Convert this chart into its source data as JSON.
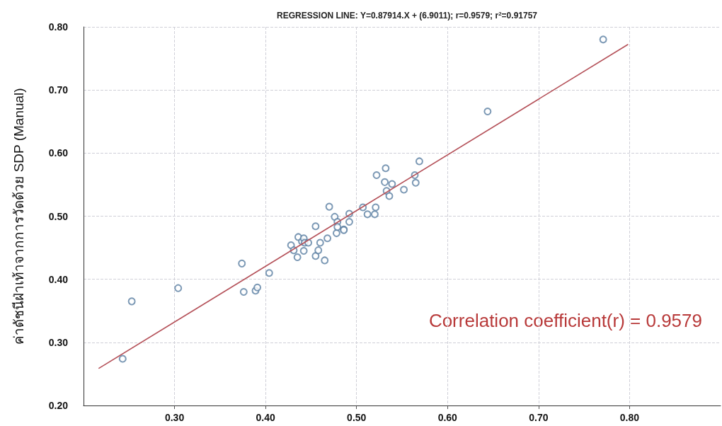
{
  "chart_data": {
    "type": "scatter",
    "title": "REGRESSION LINE: Y=0.87914.X + (6.9011); r=0.9579; r$^{2}$=0.91757",
    "ylabel": "ค่าดัชนีฝ่าเท้าจากการวัดด้วย SDP (Manual)",
    "annotations": [
      "Correlation coefficient(r) = 0.9579"
    ],
    "xlim": [
      0.2,
      0.9
    ],
    "xticks": [
      {
        "value": 0.3,
        "label": "0.30"
      },
      {
        "value": 0.4,
        "label": "0.40"
      },
      {
        "value": 0.5,
        "label": "0.50"
      },
      {
        "value": 0.6,
        "label": "0.60"
      },
      {
        "value": 0.7,
        "label": "0.70"
      },
      {
        "value": 0.8,
        "label": "0.80"
      }
    ],
    "ylim": [
      0.2,
      0.8
    ],
    "yticks": [
      {
        "value": 0.2,
        "label": "0.20"
      },
      {
        "value": 0.3,
        "label": "0.30"
      },
      {
        "value": 0.4,
        "label": "0.40"
      },
      {
        "value": 0.5,
        "label": "0.50"
      },
      {
        "value": 0.6,
        "label": "0.60"
      },
      {
        "value": 0.7,
        "label": "0.70"
      },
      {
        "value": 0.8,
        "label": "0.80"
      }
    ],
    "grid": true,
    "marker": "circle",
    "series": [
      {
        "color": "#5b7fa3",
        "x": [
          0.243,
          0.253,
          0.304,
          0.374,
          0.376,
          0.389,
          0.391,
          0.404,
          0.428,
          0.431,
          0.435,
          0.436,
          0.44,
          0.442,
          0.442,
          0.443,
          0.447,
          0.455,
          0.455,
          0.458,
          0.46,
          0.465,
          0.468,
          0.47,
          0.476,
          0.478,
          0.479,
          0.479,
          0.486,
          0.486,
          0.492,
          0.492,
          0.507,
          0.512,
          0.52,
          0.521,
          0.522,
          0.531,
          0.532,
          0.533,
          0.536,
          0.539,
          0.552,
          0.564,
          0.565,
          0.569,
          0.644,
          0.771
        ],
        "values": [
          0.274,
          0.365,
          0.386,
          0.425,
          0.38,
          0.382,
          0.387,
          0.41,
          0.454,
          0.446,
          0.435,
          0.467,
          0.46,
          0.465,
          0.445,
          0.458,
          0.458,
          0.484,
          0.437,
          0.446,
          0.458,
          0.43,
          0.465,
          0.515,
          0.499,
          0.473,
          0.491,
          0.483,
          0.479,
          0.478,
          0.504,
          0.491,
          0.514,
          0.503,
          0.503,
          0.514,
          0.565,
          0.554,
          0.576,
          0.54,
          0.532,
          0.551,
          0.542,
          0.565,
          0.553,
          0.587,
          0.666,
          0.78
        ]
      },
      {
        "type": "line",
        "color": "#b5525a",
        "line_style": "solid",
        "marker": "none",
        "x": [
          0.217,
          0.798
        ],
        "values": [
          0.259,
          0.772
        ]
      }
    ]
  }
}
